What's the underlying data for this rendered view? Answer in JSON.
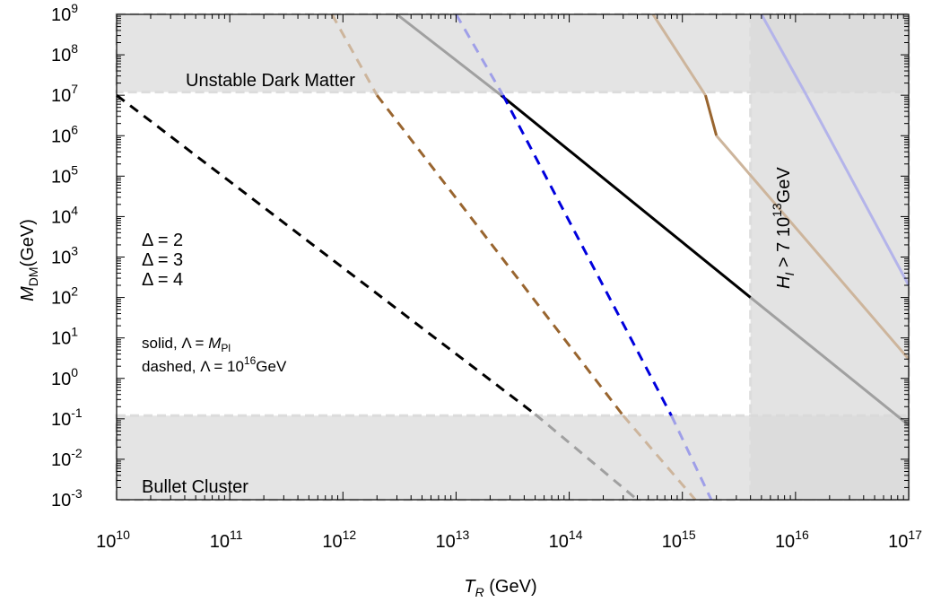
{
  "chart_data": {
    "type": "line",
    "title": "",
    "xlabel": {
      "main": "T",
      "sub": "R",
      "rest": " (GeV)"
    },
    "ylabel": {
      "main": "M",
      "sub": "DM",
      "rest": "(GeV)"
    },
    "x_scale": "log",
    "y_scale": "log",
    "xlim": [
      10000000000.0,
      1e+17
    ],
    "ylim": [
      0.001,
      1000000000.0
    ],
    "x_ticks": [
      {
        "value": 10000000000.0,
        "base": "10",
        "exp": "10"
      },
      {
        "value": 100000000000.0,
        "base": "10",
        "exp": "11"
      },
      {
        "value": 1000000000000.0,
        "base": "10",
        "exp": "12"
      },
      {
        "value": 10000000000000.0,
        "base": "10",
        "exp": "13"
      },
      {
        "value": 100000000000000.0,
        "base": "10",
        "exp": "14"
      },
      {
        "value": 1000000000000000.0,
        "base": "10",
        "exp": "15"
      },
      {
        "value": 1e+16,
        "base": "10",
        "exp": "16"
      },
      {
        "value": 1e+17,
        "base": "10",
        "exp": "17"
      }
    ],
    "y_ticks": [
      {
        "value": 0.001,
        "base": "10",
        "exp": "-3"
      },
      {
        "value": 0.01,
        "base": "10",
        "exp": "-2"
      },
      {
        "value": 0.1,
        "base": "10",
        "exp": "-1"
      },
      {
        "value": 1.0,
        "base": "10",
        "exp": "0"
      },
      {
        "value": 10.0,
        "base": "10",
        "exp": "1"
      },
      {
        "value": 100.0,
        "base": "10",
        "exp": "2"
      },
      {
        "value": 1000.0,
        "base": "10",
        "exp": "3"
      },
      {
        "value": 10000.0,
        "base": "10",
        "exp": "4"
      },
      {
        "value": 100000.0,
        "base": "10",
        "exp": "5"
      },
      {
        "value": 1000000.0,
        "base": "10",
        "exp": "6"
      },
      {
        "value": 10000000.0,
        "base": "10",
        "exp": "7"
      },
      {
        "value": 100000000.0,
        "base": "10",
        "exp": "8"
      },
      {
        "value": 1000000000.0,
        "base": "10",
        "exp": "9"
      }
    ],
    "regions": [
      {
        "label": "Unstable Dark Matter",
        "x": [
          10000000000.0,
          1e+17
        ],
        "y": [
          12000000.0,
          1000000000.0
        ]
      },
      {
        "label": "Bullet Cluster",
        "x": [
          10000000000.0,
          1e+17
        ],
        "y": [
          0.001,
          0.12
        ]
      },
      {
        "label_main": "H",
        "label_sub": "I",
        "label_rest": " > 7 10",
        "label_exp": "13",
        "label_tail": "GeV",
        "x": [
          4000000000000000.0,
          1e+17
        ],
        "y": [
          0.001,
          1000000000.0
        ]
      }
    ],
    "legend": {
      "entries": [
        {
          "label": "Δ = 2",
          "color": "#000000"
        },
        {
          "label": "Δ = 3",
          "color": "#99652f"
        },
        {
          "label": "Δ = 4",
          "color": "#0000dd"
        }
      ],
      "note_solid": "solid, Λ = ",
      "note_solid_main": "M",
      "note_solid_sub": "Pl",
      "note_dashed": "dashed, Λ = 10",
      "note_dashed_exp": "16",
      "note_dashed_tail": "GeV"
    },
    "series": [
      {
        "name": "Δ = 2",
        "lambda": "M_Pl",
        "style": "solid",
        "color": "#000000",
        "faded_color": "#a0a0a0",
        "points": [
          [
            3000000000000.0,
            1000000000.0
          ],
          [
            25000000000000.0,
            10000000.0
          ],
          [
            4000000000000000.0,
            100
          ],
          [
            1e+17,
            0.07
          ]
        ]
      },
      {
        "name": "Δ = 2",
        "lambda": "10^16 GeV",
        "style": "dashed",
        "color": "#000000",
        "faded_color": "#a0a0a0",
        "points": [
          [
            10000000000.0,
            10000000.0
          ],
          [
            50000000000000.0,
            0.13
          ],
          [
            400000000000000.0,
            0.001
          ]
        ]
      },
      {
        "name": "Δ = 3",
        "lambda": "M_Pl",
        "style": "solid",
        "color": "#99652f",
        "faded_color": "#cdb59c",
        "points": [
          [
            550000000000000.0,
            1000000000.0
          ],
          [
            1600000000000000.0,
            10000000.0
          ],
          [
            2000000000000000.0,
            1000000.0
          ],
          [
            1e+17,
            3
          ]
        ]
      },
      {
        "name": "Δ = 3",
        "lambda": "10^16 GeV",
        "style": "dashed",
        "color": "#99652f",
        "faded_color": "#cdb59c",
        "points": [
          [
            800000000000.0,
            1000000000.0
          ],
          [
            2000000000000.0,
            10000000.0
          ],
          [
            300000000000000.0,
            0.12
          ],
          [
            1300000000000000.0,
            0.001
          ]
        ]
      },
      {
        "name": "Δ = 4",
        "lambda": "M_Pl",
        "style": "solid",
        "color": "#6a6ad8",
        "faded_color": "#b4b4ea",
        "points": [
          [
            5000000000000000.0,
            1000000000.0
          ],
          [
            1.25e+16,
            10000000.0
          ],
          [
            1e+17,
            200
          ]
        ]
      },
      {
        "name": "Δ = 4",
        "lambda": "10^16 GeV",
        "style": "dashed",
        "color": "#0000dd",
        "faded_color": "#9f9fe8",
        "points": [
          [
            10000000000000.0,
            1000000000.0
          ],
          [
            26000000000000.0,
            10000000.0
          ],
          [
            800000000000000.0,
            0.12
          ],
          [
            1800000000000000.0,
            0.001
          ]
        ]
      }
    ]
  }
}
